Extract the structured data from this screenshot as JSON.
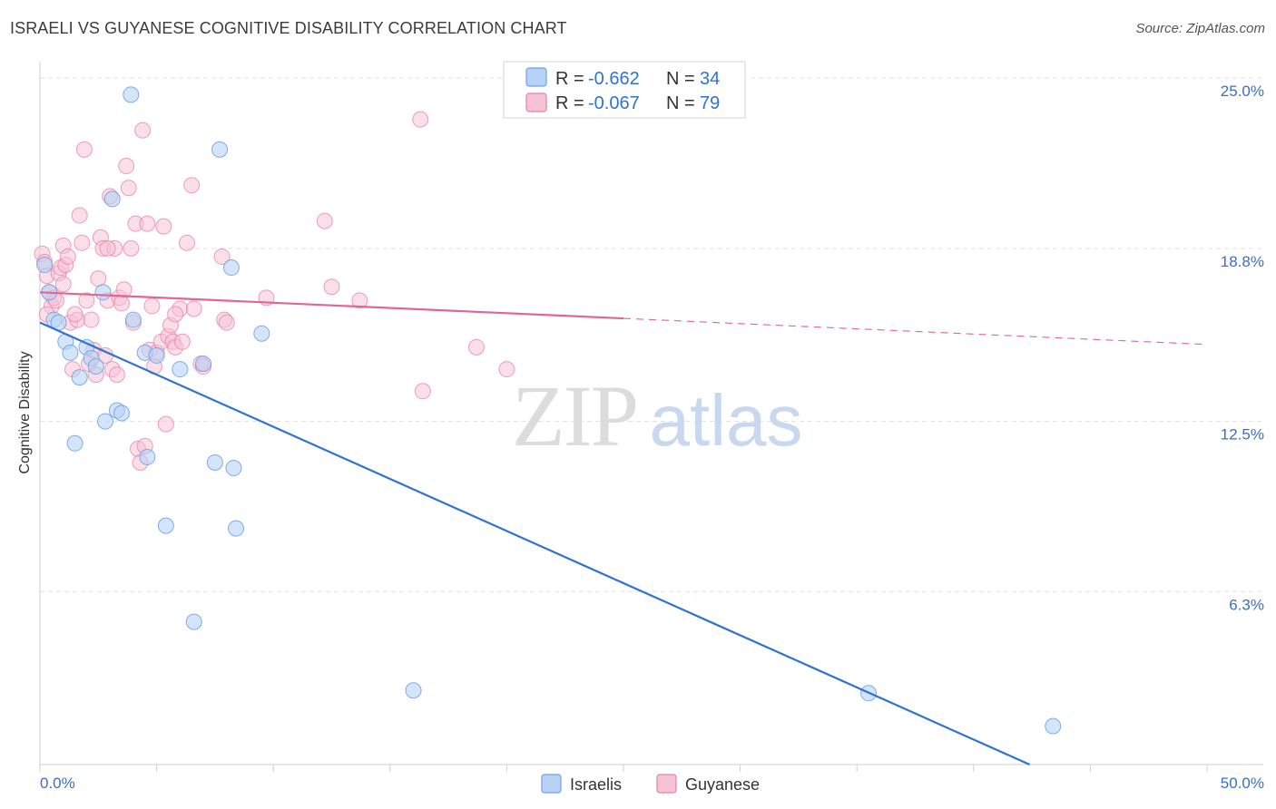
{
  "title": "ISRAELI VS GUYANESE COGNITIVE DISABILITY CORRELATION CHART",
  "source": "Source: ZipAtlas.com",
  "watermark": {
    "zip": "ZIP",
    "atlas": "atlas"
  },
  "colors": {
    "israelis": "#6fa0e6",
    "israelis_fill": "#b8d2f5",
    "guyanese": "#e880a6",
    "guyanese_fill": "#f6c3d5",
    "trend_blue": "#2f72d4",
    "trend_pink": "#e2668f",
    "tick_text": "#3a6fc8"
  },
  "legend": {
    "rows": [
      {
        "r_label": "R =",
        "r_value": "-0.662",
        "n_label": "N =",
        "n_value": "34"
      },
      {
        "r_label": "R =",
        "r_value": "-0.067",
        "n_label": "N =",
        "n_value": "79"
      }
    ]
  },
  "bottom_legend": [
    "Israelis",
    "Guyanese"
  ],
  "chart_data": {
    "type": "scatter",
    "title": "ISRAELI VS GUYANESE COGNITIVE DISABILITY CORRELATION CHART",
    "xlabel": "",
    "ylabel": "Cognitive Disability",
    "xlim": [
      0,
      50
    ],
    "ylim": [
      0,
      25.6
    ],
    "x_tick_labels": [
      "0.0%",
      "50.0%"
    ],
    "y_ticks": [
      6.3,
      12.5,
      18.8,
      25.0
    ],
    "y_tick_labels": [
      "6.3%",
      "12.5%",
      "18.8%",
      "25.0%"
    ],
    "grid": true,
    "legend_position": "top-center",
    "series": [
      {
        "name": "Israelis",
        "r": -0.662,
        "n": 34,
        "trend": {
          "x": [
            0,
            42.4
          ],
          "y": [
            16.1,
            0
          ]
        },
        "points": [
          [
            0.2,
            18.2
          ],
          [
            0.4,
            17.2
          ],
          [
            0.6,
            16.2
          ],
          [
            0.8,
            16.1
          ],
          [
            1.1,
            15.4
          ],
          [
            1.3,
            15.0
          ],
          [
            1.5,
            11.7
          ],
          [
            1.7,
            14.1
          ],
          [
            2.0,
            15.2
          ],
          [
            2.2,
            14.8
          ],
          [
            2.4,
            14.5
          ],
          [
            2.7,
            17.2
          ],
          [
            2.8,
            12.5
          ],
          [
            3.1,
            20.6
          ],
          [
            3.3,
            12.9
          ],
          [
            3.5,
            12.8
          ],
          [
            3.9,
            24.4
          ],
          [
            4.0,
            16.2
          ],
          [
            4.5,
            15.0
          ],
          [
            4.6,
            11.2
          ],
          [
            5.0,
            14.9
          ],
          [
            5.4,
            8.7
          ],
          [
            6.0,
            14.4
          ],
          [
            6.6,
            5.2
          ],
          [
            7.0,
            14.6
          ],
          [
            7.5,
            11.0
          ],
          [
            7.7,
            22.4
          ],
          [
            8.2,
            18.1
          ],
          [
            8.3,
            10.8
          ],
          [
            8.4,
            8.6
          ],
          [
            9.5,
            15.7
          ],
          [
            16.0,
            2.7
          ],
          [
            35.5,
            2.6
          ],
          [
            43.4,
            1.4
          ]
        ]
      },
      {
        "name": "Guyanese",
        "r": -0.067,
        "n": 79,
        "trend": {
          "x": [
            0,
            50
          ],
          "y": [
            17.2,
            15.3
          ]
        },
        "trend_solid_until_x": 25,
        "points": [
          [
            0.1,
            18.6
          ],
          [
            0.2,
            18.3
          ],
          [
            0.3,
            17.8
          ],
          [
            0.4,
            17.2
          ],
          [
            0.5,
            16.7
          ],
          [
            0.6,
            17.0
          ],
          [
            0.7,
            16.9
          ],
          [
            0.8,
            17.9
          ],
          [
            0.9,
            18.1
          ],
          [
            1.0,
            17.5
          ],
          [
            1.0,
            18.9
          ],
          [
            1.1,
            18.2
          ],
          [
            1.2,
            18.5
          ],
          [
            1.3,
            16.1
          ],
          [
            1.4,
            14.4
          ],
          [
            1.6,
            16.2
          ],
          [
            1.7,
            20.0
          ],
          [
            1.8,
            19.0
          ],
          [
            1.9,
            22.4
          ],
          [
            2.0,
            16.9
          ],
          [
            2.1,
            14.6
          ],
          [
            2.2,
            16.2
          ],
          [
            2.3,
            15.1
          ],
          [
            2.4,
            14.2
          ],
          [
            2.5,
            17.7
          ],
          [
            2.6,
            19.2
          ],
          [
            2.7,
            18.8
          ],
          [
            2.8,
            14.9
          ],
          [
            2.9,
            16.9
          ],
          [
            3.0,
            20.7
          ],
          [
            3.1,
            14.4
          ],
          [
            3.2,
            18.8
          ],
          [
            3.3,
            14.2
          ],
          [
            3.4,
            17.0
          ],
          [
            3.5,
            16.8
          ],
          [
            3.6,
            17.3
          ],
          [
            3.7,
            21.8
          ],
          [
            3.8,
            21.0
          ],
          [
            3.9,
            18.8
          ],
          [
            4.0,
            16.1
          ],
          [
            4.1,
            19.7
          ],
          [
            4.2,
            11.5
          ],
          [
            4.3,
            11.0
          ],
          [
            4.4,
            23.1
          ],
          [
            4.5,
            11.6
          ],
          [
            4.6,
            19.7
          ],
          [
            4.7,
            15.1
          ],
          [
            4.8,
            16.7
          ],
          [
            4.9,
            14.5
          ],
          [
            5.0,
            15.0
          ],
          [
            5.2,
            15.4
          ],
          [
            5.3,
            19.6
          ],
          [
            5.4,
            12.4
          ],
          [
            5.5,
            15.6
          ],
          [
            5.6,
            16.0
          ],
          [
            5.7,
            15.4
          ],
          [
            5.8,
            15.2
          ],
          [
            6.0,
            16.6
          ],
          [
            6.1,
            15.4
          ],
          [
            6.3,
            19.0
          ],
          [
            6.5,
            21.1
          ],
          [
            6.6,
            16.6
          ],
          [
            6.9,
            14.6
          ],
          [
            7.0,
            14.5
          ],
          [
            7.8,
            18.5
          ],
          [
            7.9,
            16.2
          ],
          [
            8.0,
            16.1
          ],
          [
            9.7,
            17.0
          ],
          [
            12.2,
            19.8
          ],
          [
            12.5,
            17.4
          ],
          [
            13.7,
            16.9
          ],
          [
            16.3,
            23.5
          ],
          [
            16.4,
            13.6
          ],
          [
            18.7,
            15.2
          ],
          [
            20.0,
            14.4
          ],
          [
            0.3,
            16.4
          ],
          [
            1.5,
            16.4
          ],
          [
            2.9,
            18.8
          ],
          [
            5.8,
            16.4
          ]
        ]
      }
    ]
  }
}
